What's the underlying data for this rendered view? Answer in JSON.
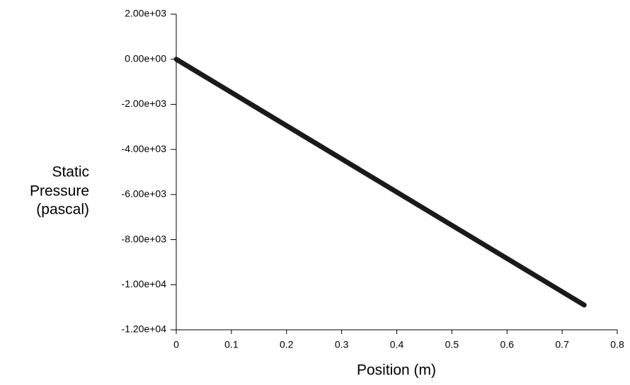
{
  "chart_data": {
    "type": "line",
    "xlabel": "Position (m)",
    "ylabel": [
      "Static",
      "Pressure",
      "(pascal)"
    ],
    "series": [
      {
        "color": "#1a1a1a",
        "x": [
          0,
          0.74
        ],
        "values": [
          0,
          -10900
        ]
      }
    ],
    "xlim": [
      0,
      0.8
    ],
    "xticks": [
      0,
      0.1,
      0.2,
      0.3,
      0.4,
      0.5,
      0.6,
      0.7,
      0.8
    ],
    "ylim": [
      -12000,
      2000
    ],
    "yticks": [
      {
        "value": 2000,
        "label": "2.00e+03"
      },
      {
        "value": 0,
        "label": "0.00e+00"
      },
      {
        "value": -2000,
        "label": "-2.00e+03"
      },
      {
        "value": -4000,
        "label": "-4.00e+03"
      },
      {
        "value": -6000,
        "label": "-6.00e+03"
      },
      {
        "value": -8000,
        "label": "-8.00e+03"
      },
      {
        "value": -10000,
        "label": "-1.00e+04"
      },
      {
        "value": -12000,
        "label": "-1.20e+04"
      }
    ]
  }
}
